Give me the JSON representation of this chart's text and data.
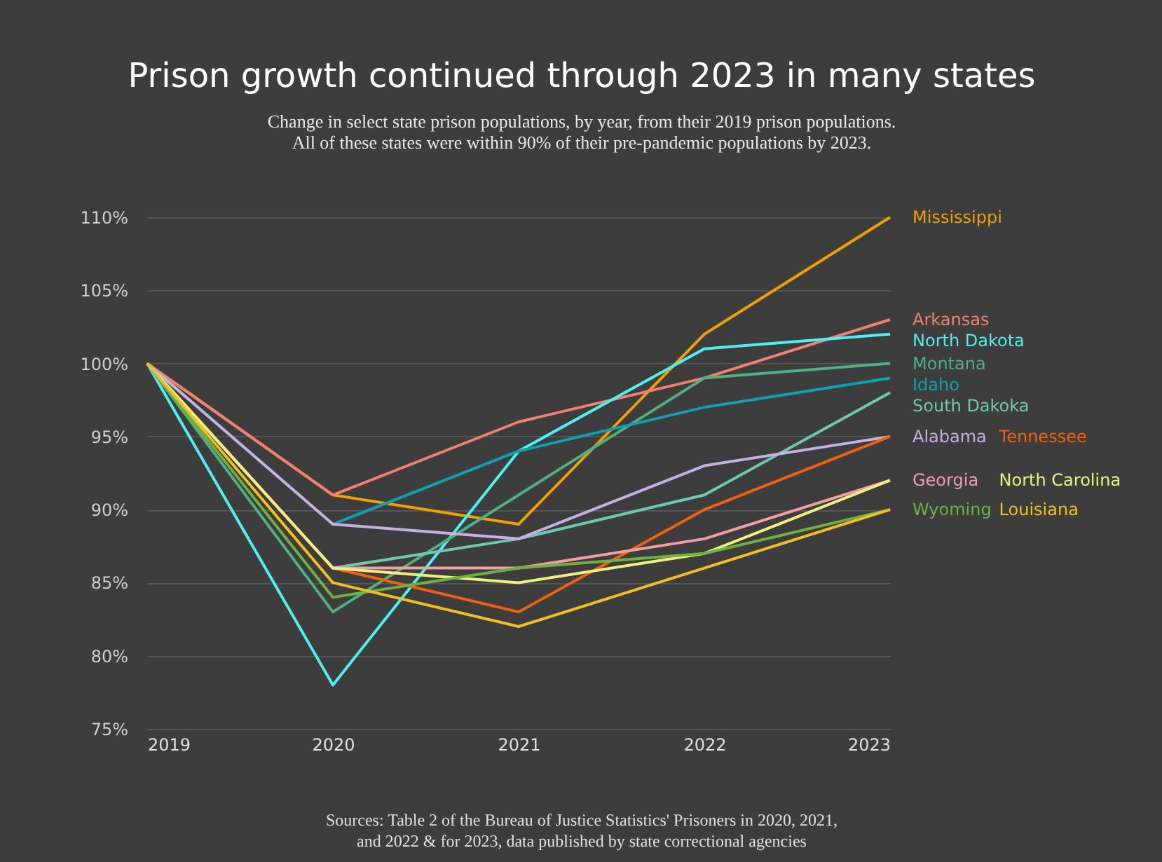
{
  "chart_data": {
    "type": "line",
    "title": "Prison growth continued through 2023 in many states",
    "subtitle": [
      "Change in select state prison populations, by year, from their 2019 prison populations.",
      "All of these states were within 90% of their pre-pandemic populations by 2023."
    ],
    "x": [
      2019,
      2020,
      2021,
      2022,
      2023
    ],
    "xlim": [
      2019,
      2023
    ],
    "xticks": [
      2019,
      2020,
      2021,
      2022,
      2023
    ],
    "ylim": [
      75,
      110
    ],
    "yticks": [
      {
        "value": 75,
        "label": "75%"
      },
      {
        "value": 80,
        "label": "80%"
      },
      {
        "value": 85,
        "label": "85%"
      },
      {
        "value": 90,
        "label": "90%"
      },
      {
        "value": 95,
        "label": "95%"
      },
      {
        "value": 100,
        "label": "100%"
      },
      {
        "value": 105,
        "label": "105%"
      },
      {
        "value": 110,
        "label": "110%"
      }
    ],
    "grid": "y",
    "marker": "none",
    "line_style": "solid",
    "series": [
      {
        "name": "Mississippi",
        "color": "#f0a000",
        "values": [
          100,
          91,
          89,
          102,
          110
        ]
      },
      {
        "name": "Arkansas",
        "color": "#f08070",
        "values": [
          100,
          91,
          96,
          99,
          103
        ]
      },
      {
        "name": "North Dakota",
        "color": "#50f0f0",
        "values": [
          100,
          78,
          94,
          101,
          102
        ]
      },
      {
        "name": "Montana",
        "color": "#50b080",
        "values": [
          100,
          83,
          91,
          99,
          100
        ]
      },
      {
        "name": "Idaho",
        "color": "#10a0b0",
        "values": [
          100,
          89,
          94,
          97,
          99
        ]
      },
      {
        "name": "South Dakoka",
        "color": "#70c8b0",
        "values": [
          100,
          86,
          88,
          91,
          98
        ]
      },
      {
        "name": "Alabama",
        "color": "#c8b0e0",
        "values": [
          100,
          89,
          88,
          93,
          95
        ]
      },
      {
        "name": "Tennessee",
        "color": "#f06010",
        "values": [
          100,
          86,
          83,
          90,
          95
        ]
      },
      {
        "name": "Georgia",
        "color": "#f0a0a0",
        "values": [
          100,
          86,
          86,
          88,
          92
        ]
      },
      {
        "name": "North Carolina",
        "color": "#f0f080",
        "values": [
          100,
          86,
          85,
          87,
          92
        ]
      },
      {
        "name": "Wyoming",
        "color": "#70b040",
        "values": [
          100,
          84,
          86,
          87,
          90
        ]
      },
      {
        "name": "Louisiana",
        "color": "#f0c020",
        "values": [
          100,
          85,
          82,
          86,
          90
        ]
      }
    ],
    "annotations": [
      "Sources: Table 2 of the Bureau of Justice Statistics' Prisoners in 2020, 2021,",
      "and 2022 & for 2023, data published by state correctional agencies"
    ]
  }
}
